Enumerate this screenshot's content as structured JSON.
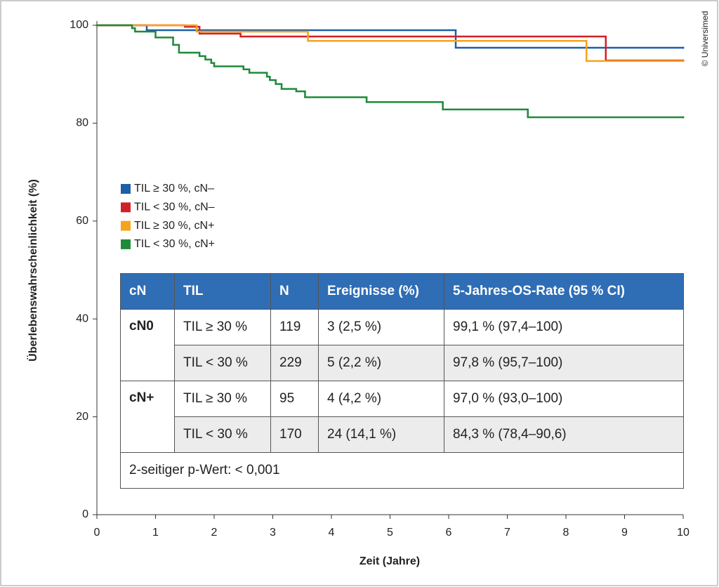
{
  "chart_data": {
    "type": "step",
    "ylabel": "Überlebenswahrscheinlichkeit (%)",
    "xlabel": "Zeit (Jahre)",
    "xlim": [
      0,
      10
    ],
    "ylim": [
      0,
      100
    ],
    "xticks": [
      0,
      1,
      2,
      3,
      4,
      5,
      6,
      7,
      8,
      9,
      10
    ],
    "yticks": [
      0,
      20,
      40,
      60,
      80,
      100
    ],
    "legend": "center left",
    "series": [
      {
        "name": "TIL ≥ 30 %, cN–",
        "color": "#1f5fa8",
        "x": [
          0,
          0.85,
          6.12,
          10
        ],
        "values": [
          100,
          99,
          95.4,
          95.4
        ]
      },
      {
        "name": "TIL < 30 %, cN–",
        "color": "#d02027",
        "x": [
          0,
          1.5,
          1.75,
          2.45,
          8.68,
          10
        ],
        "values": [
          100,
          99.7,
          98.3,
          97.7,
          92.8,
          92.8
        ]
      },
      {
        "name": "TIL ≥ 30 %, cN+",
        "color": "#f7a21b",
        "x": [
          0,
          1.7,
          3.6,
          8.35,
          10
        ],
        "values": [
          100,
          98.7,
          96.8,
          92.7,
          92.7
        ]
      },
      {
        "name": "TIL < 30 %, cN+",
        "color": "#1e8a3a",
        "x": [
          0,
          0.6,
          0.65,
          1.0,
          1.3,
          1.4,
          1.75,
          1.85,
          1.95,
          2.0,
          2.5,
          2.6,
          2.9,
          2.95,
          3.05,
          3.15,
          3.4,
          3.55,
          4.6,
          5.9,
          7.35,
          10
        ],
        "values": [
          100,
          99.4,
          98.7,
          97.5,
          96,
          94.4,
          93.7,
          93,
          92.3,
          91.6,
          91,
          90.3,
          89.5,
          88.8,
          88,
          87,
          86.5,
          85.3,
          84.3,
          82.8,
          81.2,
          81.2
        ]
      }
    ]
  },
  "table": {
    "header": [
      "cN",
      "TIL",
      "N",
      "Ereignisse (%)",
      "5-Jahres-OS-Rate (95 % CI)"
    ],
    "groups": [
      {
        "label": "cN0",
        "rows": [
          [
            "TIL ≥ 30 %",
            "119",
            "3 (2,5 %)",
            "99,1 % (97,4–100)"
          ],
          [
            "TIL < 30 %",
            "229",
            "5 (2,2 %)",
            "97,8 % (95,7–100)"
          ]
        ]
      },
      {
        "label": "cN+",
        "rows": [
          [
            "TIL ≥ 30 %",
            "95",
            "4 (4,2 %)",
            "97,0 % (93,0–100)"
          ],
          [
            "TIL < 30 %",
            "170",
            "24 (14,1 %)",
            "84,3 % (78,4–90,6)"
          ]
        ]
      }
    ],
    "footer": "2-seitiger p-Wert: < 0,001"
  },
  "credit": "© Universimed"
}
